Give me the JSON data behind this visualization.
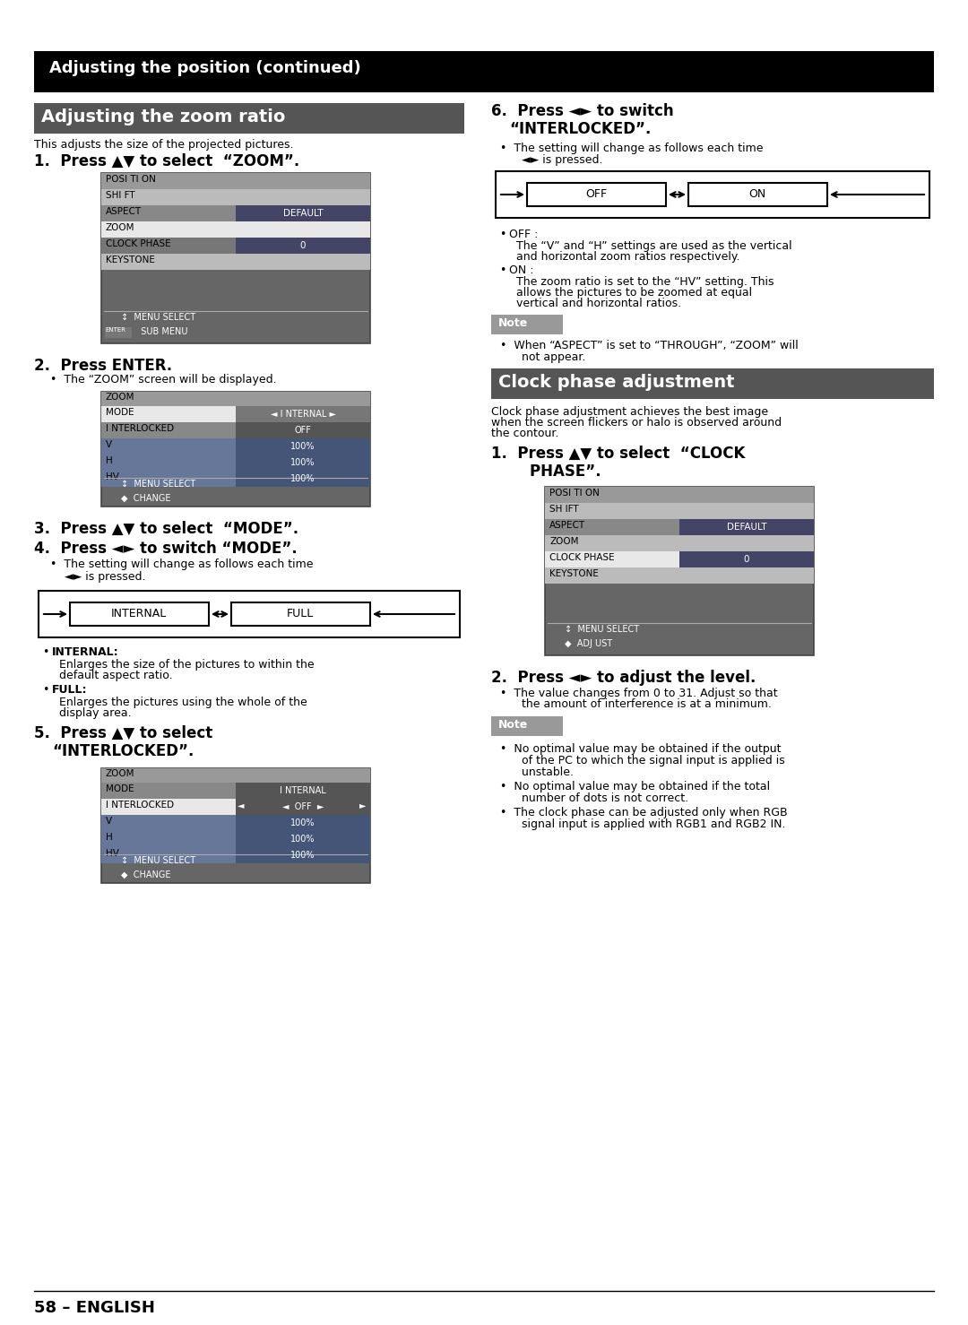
{
  "page_title": "Adjusting the position (continued)",
  "section1_title": "Adjusting the zoom ratio",
  "section1_intro": "This adjusts the size of the projected pictures.",
  "section2_title": "Clock phase adjustment",
  "section2_intro": "Clock phase adjustment achieves the best image\nwhen the screen flickers or halo is observed around\nthe contour.",
  "step1_header": "1.  Press ▲▼ to select  “ZOOM”.",
  "step2_header": "2.  Press ENTER.",
  "step2_bullet": "The “ZOOM” screen will be displayed.",
  "step3_header": "3.  Press ▲▼ to select  “MODE”.",
  "step4_header": "4.  Press ◄► to switch “MODE”.",
  "step4_bullet1": "The setting will change as follows each time",
  "step4_bullet2": "◄► is pressed.",
  "internal_label": "INTERNAL",
  "full_label": "FULL",
  "internal_desc_bold": "INTERNAL:",
  "internal_desc": "Enlarges the size of the pictures to within the\ndefault aspect ratio.",
  "full_desc_bold": "FULL:",
  "full_desc": "Enlarges the pictures using the whole of the\ndisplay area.",
  "step5_line1": "5.  Press ▲▼ to select",
  "step5_line2": "“INTERLOCKED”.",
  "step6_line1": "6.  Press ◄► to switch",
  "step6_line2": "“INTERLOCKED”.",
  "step6_bullet1": "The setting will change as follows each time",
  "step6_bullet2": "◄► is pressed.",
  "off_label": "OFF",
  "on_label": "ON",
  "off_desc_bold": "OFF :",
  "off_desc_line1": "The “V” and “H” settings are used as the vertical",
  "off_desc_line2": "and horizontal zoom ratios respectively.",
  "on_desc_bold": "ON :",
  "on_desc_line1": "The zoom ratio is set to the “HV” setting. This",
  "on_desc_line2": "allows the pictures to be zoomed at equal",
  "on_desc_line3": "vertical and horizontal ratios.",
  "note1_text1": "When “ASPECT” is set to “THROUGH”, “ZOOM” will",
  "note1_text2": "not appear.",
  "step_cp1_line1": "1.  Press ▲▼ to select  “CLOCK",
  "step_cp1_line2": "    PHASE”.",
  "step_cp2_header": "2.  Press ◄► to adjust the level.",
  "step_cp2_bullet1": "The value changes from 0 to 31. Adjust so that",
  "step_cp2_bullet2": "the amount of interference is at a minimum.",
  "note2_b1_l1": "No optimal value may be obtained if the output",
  "note2_b1_l2": "of the PC to which the signal input is applied is",
  "note2_b1_l3": "unstable.",
  "note2_b2_l1": "No optimal value may be obtained if the total",
  "note2_b2_l2": "number of dots is not correct.",
  "note2_b3_l1": "The clock phase can be adjusted only when RGB",
  "note2_b3_l2": "signal input is applied with RGB1 and RGB2 IN.",
  "footer": "58 – ENGLISH",
  "bg_color": "#ffffff",
  "header_bg": "#000000",
  "header_fg": "#ffffff",
  "sec1_bg": "#555555",
  "sec1_fg": "#ffffff",
  "sec2_bg": "#555555",
  "sec2_fg": "#ffffff",
  "note_bg": "#999999",
  "note_fg": "#ffffff",
  "menu_outer_bg": "#666666",
  "menu_header_bg": "#999999",
  "menu_row_light": "#bbbbbb",
  "menu_row_white": "#ffffff",
  "menu_row_mid": "#888888",
  "menu_row_dark": "#777777",
  "menu_val_dark": "#444466",
  "menu_val_mid": "#666688",
  "menu_row_blue": "#667799"
}
